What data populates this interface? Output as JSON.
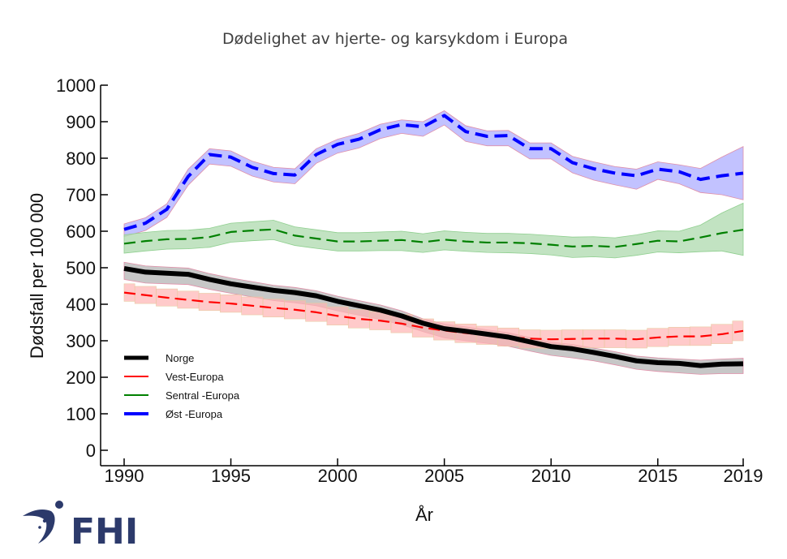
{
  "chart_data": {
    "type": "line",
    "values_estimated": true,
    "estimation_note": "No data labels in source figure; values read from line/band positions against y-axis gridlines, approx. +/-10.",
    "title": "Dødelighet av hjerte- og karsykdom i Europa",
    "xlabel": "År",
    "ylabel": "Dødsfall per 100 000",
    "xlim": [
      1990,
      2019
    ],
    "ylim": [
      0,
      1000
    ],
    "x_ticks": [
      1990,
      1995,
      2000,
      2005,
      2010,
      2015,
      2019
    ],
    "y_ticks": [
      0,
      100,
      200,
      300,
      400,
      500,
      600,
      700,
      800,
      900,
      1000
    ],
    "grid": false,
    "legend_position": "bottom-left",
    "x": [
      1990,
      1991,
      1992,
      1993,
      1994,
      1995,
      1996,
      1997,
      1998,
      1999,
      2000,
      2001,
      2002,
      2003,
      2004,
      2005,
      2006,
      2007,
      2008,
      2009,
      2010,
      2011,
      2012,
      2013,
      2014,
      2015,
      2016,
      2017,
      2018,
      2019
    ],
    "series": [
      {
        "name": "Norge",
        "color": "#000000",
        "band_color": "#bdbdbd",
        "style": "solid-thick",
        "band_type": "smooth",
        "values": [
          498,
          488,
          485,
          482,
          468,
          456,
          447,
          438,
          432,
          423,
          408,
          396,
          384,
          368,
          348,
          333,
          326,
          318,
          310,
          297,
          284,
          278,
          268,
          257,
          245,
          240,
          238,
          232,
          236,
          237
        ],
        "lower": [
          468,
          458,
          456,
          454,
          441,
          430,
          420,
          410,
          404,
          396,
          382,
          370,
          358,
          344,
          325,
          308,
          300,
          293,
          285,
          272,
          260,
          253,
          245,
          234,
          222,
          216,
          212,
          208,
          210,
          210
        ],
        "upper": [
          515,
          505,
          502,
          499,
          484,
          472,
          462,
          452,
          446,
          437,
          422,
          410,
          398,
          382,
          360,
          346,
          338,
          330,
          322,
          309,
          296,
          290,
          280,
          270,
          258,
          253,
          250,
          247,
          250,
          252
        ]
      },
      {
        "name": "Vest-Europa",
        "color": "#ff0000",
        "band_color": "#ffb3b3",
        "style": "dashed",
        "band_type": "step",
        "values": [
          432,
          425,
          418,
          412,
          406,
          402,
          396,
          390,
          385,
          378,
          368,
          360,
          355,
          347,
          336,
          328,
          321,
          316,
          310,
          306,
          304,
          305,
          306,
          306,
          304,
          309,
          312,
          312,
          318,
          327
        ],
        "lower": [
          408,
          402,
          395,
          389,
          383,
          378,
          371,
          365,
          360,
          353,
          343,
          335,
          330,
          322,
          310,
          302,
          295,
          290,
          285,
          280,
          279,
          280,
          281,
          281,
          280,
          284,
          287,
          287,
          292,
          300
        ],
        "upper": [
          456,
          449,
          442,
          436,
          430,
          426,
          420,
          414,
          410,
          403,
          393,
          385,
          380,
          372,
          360,
          352,
          346,
          340,
          335,
          330,
          329,
          330,
          330,
          330,
          329,
          334,
          337,
          338,
          345,
          354
        ]
      },
      {
        "name": "Sentral -Europa",
        "color": "#008000",
        "band_color": "#b3dcb3",
        "style": "dashed",
        "band_type": "smooth",
        "values": [
          566,
          573,
          578,
          579,
          584,
          598,
          602,
          605,
          588,
          580,
          572,
          572,
          574,
          576,
          570,
          577,
          572,
          569,
          569,
          567,
          563,
          558,
          560,
          557,
          565,
          574,
          572,
          583,
          595,
          604
        ],
        "lower": [
          540,
          546,
          551,
          552,
          556,
          570,
          574,
          577,
          561,
          553,
          546,
          546,
          547,
          547,
          542,
          549,
          545,
          542,
          541,
          539,
          535,
          528,
          530,
          527,
          534,
          543,
          541,
          544,
          546,
          534
        ],
        "upper": [
          590,
          597,
          602,
          603,
          608,
          622,
          626,
          630,
          612,
          604,
          596,
          596,
          598,
          600,
          593,
          601,
          597,
          594,
          594,
          592,
          588,
          584,
          585,
          582,
          590,
          601,
          600,
          617,
          650,
          677
        ]
      },
      {
        "name": "Øst -Europa",
        "color": "#0000ff",
        "band_color": "#b3b3ff",
        "style": "dashed-thick",
        "band_type": "smooth",
        "values": [
          605,
          622,
          660,
          750,
          810,
          803,
          775,
          758,
          754,
          810,
          838,
          852,
          878,
          892,
          886,
          917,
          873,
          860,
          862,
          826,
          826,
          788,
          771,
          759,
          752,
          770,
          763,
          742,
          752,
          759
        ],
        "lower": [
          585,
          602,
          638,
          726,
          784,
          778,
          751,
          735,
          730,
          786,
          814,
          828,
          854,
          868,
          860,
          891,
          846,
          834,
          834,
          798,
          798,
          760,
          740,
          727,
          715,
          742,
          730,
          706,
          700,
          686
        ],
        "upper": [
          620,
          637,
          675,
          770,
          826,
          820,
          792,
          775,
          771,
          826,
          852,
          868,
          893,
          905,
          900,
          930,
          889,
          875,
          876,
          842,
          842,
          805,
          790,
          777,
          770,
          790,
          782,
          772,
          803,
          832
        ]
      }
    ]
  },
  "logo": {
    "text": "FHI",
    "color": "#2c3a6b"
  }
}
